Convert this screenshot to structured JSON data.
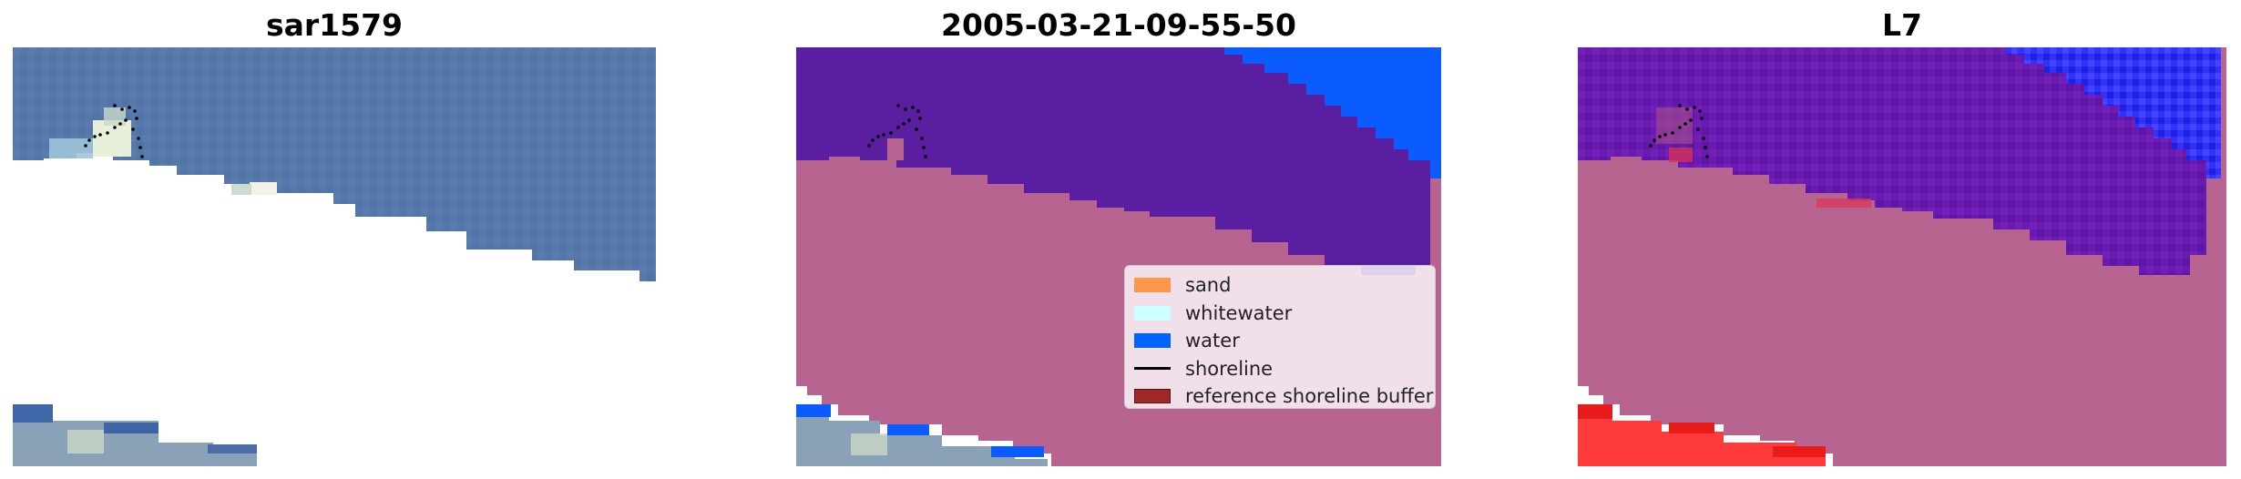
{
  "panels": [
    {
      "title": "sar1579"
    },
    {
      "title": "2005-03-21-09-55-50"
    },
    {
      "title": "L7"
    }
  ],
  "legend": {
    "items": [
      {
        "label": "sand",
        "color": "#ff9648"
      },
      {
        "label": "whitewater",
        "color": "#ccffff"
      },
      {
        "label": "water",
        "color": "#0064ff"
      },
      {
        "label": "shoreline",
        "color": "#000000"
      },
      {
        "label": "reference shoreline buffer",
        "color": "#a02828"
      }
    ]
  },
  "colors": {
    "sea_rgb": "#5578a8",
    "water_class": "#5a1fa0",
    "sand_mask": "#b86490",
    "water_blue": "#0a5cff"
  }
}
